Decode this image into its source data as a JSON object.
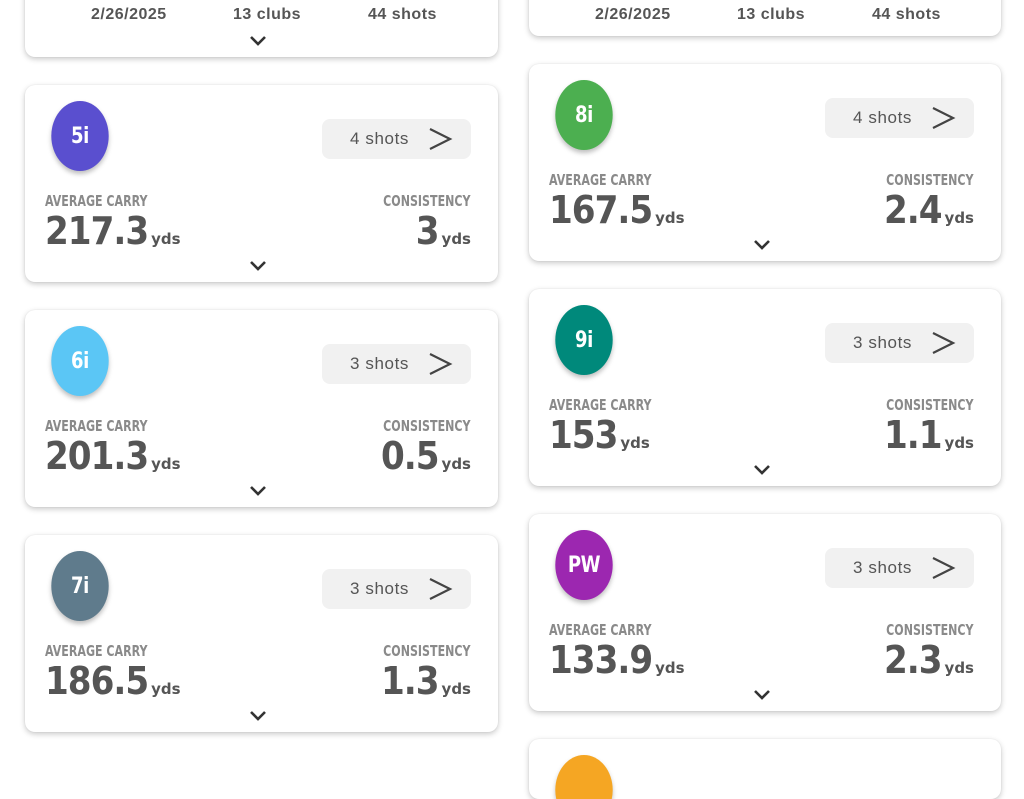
{
  "top_summary": [
    {
      "date": "2/26/2025",
      "clubs": "13 clubs",
      "shots": "44 shots"
    },
    {
      "date": "2/26/2025",
      "clubs": "13 clubs",
      "shots": "44 shots"
    }
  ],
  "labels": {
    "average_carry": "AVERAGE CARRY",
    "consistency": "CONSISTENCY",
    "unit": "yds"
  },
  "clubs": [
    {
      "club": "5i",
      "color": "#5a4fcf",
      "shots": "4 shots",
      "carry": "217.3",
      "consistency": "3"
    },
    {
      "club": "6i",
      "color": "#5bc6f5",
      "shots": "3 shots",
      "carry": "201.3",
      "consistency": "0.5"
    },
    {
      "club": "7i",
      "color": "#5f7b8c",
      "shots": "3 shots",
      "carry": "186.5",
      "consistency": "1.3"
    },
    {
      "club": "8i",
      "color": "#4caf50",
      "shots": "4 shots",
      "carry": "167.5",
      "consistency": "2.4"
    },
    {
      "club": "9i",
      "color": "#00897b",
      "shots": "3 shots",
      "carry": "153",
      "consistency": "1.1"
    },
    {
      "club": "PW",
      "color": "#9c27b0",
      "shots": "3 shots",
      "carry": "133.9",
      "consistency": "2.3"
    }
  ],
  "next_club_color": "#f5a623"
}
